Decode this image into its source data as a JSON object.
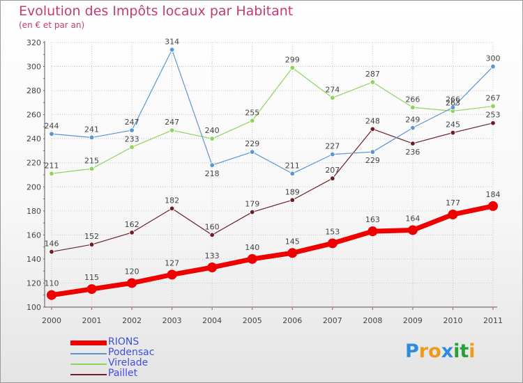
{
  "title": "Evolution des Impôts locaux par Habitant",
  "subtitle": "(en € et par an)",
  "brand": {
    "text": "Proxiti",
    "letter_colors": [
      "#2f8be0",
      "#f09a1a",
      "#f09a1a",
      "#2f8be0",
      "#27a03a",
      "#27a03a",
      "#f09a1a"
    ]
  },
  "chart_data": {
    "type": "line",
    "title": "Evolution des Impôts locaux par Habitant",
    "subtitle": "(en € et par an)",
    "xlabel": "",
    "ylabel": "",
    "categories": [
      "2000",
      "2001",
      "2002",
      "2003",
      "2004",
      "2005",
      "2006",
      "2007",
      "2008",
      "2009",
      "2010",
      "2011"
    ],
    "ylim": [
      100,
      320
    ],
    "yticks": [
      100,
      120,
      140,
      160,
      180,
      200,
      220,
      240,
      260,
      280,
      300,
      320
    ],
    "grid": true,
    "legend_position": "bottom-left",
    "series": [
      {
        "name": "Paillet",
        "color": "#6b1e26",
        "values": [
          146,
          152,
          162,
          182,
          160,
          179,
          189,
          207,
          248,
          236,
          245,
          253
        ]
      },
      {
        "name": "Virelade",
        "color": "#8ed45c",
        "values": [
          211,
          215,
          233,
          247,
          240,
          255,
          299,
          274,
          287,
          266,
          263,
          267
        ]
      },
      {
        "name": "Podensac",
        "color": "#5a95cf",
        "values": [
          244,
          241,
          247,
          314,
          218,
          229,
          211,
          227,
          229,
          249,
          266,
          300
        ]
      },
      {
        "name": "RIONS",
        "color": "#ee0000",
        "values": [
          110,
          115,
          120,
          127,
          133,
          140,
          145,
          153,
          163,
          164,
          177,
          184
        ]
      }
    ],
    "data_labels": {
      "Paillet": [
        "146",
        "152",
        "162",
        "182",
        "160",
        "179",
        "189",
        "207",
        "248",
        "236",
        "245",
        "253"
      ],
      "Virelade": [
        "211",
        "215",
        "233",
        "247",
        "240",
        "255",
        "299",
        "274",
        "287",
        "266",
        "263",
        "267"
      ],
      "Podensac": [
        "244",
        "241",
        "247",
        "314",
        "218",
        "229",
        "211",
        "227",
        "229",
        "249",
        "266",
        "300"
      ],
      "RIONS": [
        "110",
        "115",
        "120",
        "127",
        "133",
        "140",
        "145",
        "153",
        "163",
        "164",
        "177",
        "184"
      ]
    },
    "legend": [
      "RIONS",
      "Podensac",
      "Virelade",
      "Paillet"
    ]
  }
}
